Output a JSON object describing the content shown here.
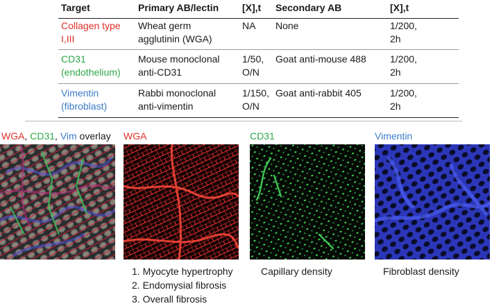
{
  "table": {
    "headers": [
      "Target",
      "Primary AB/lectin",
      "[X],t",
      "Secondary AB",
      "[X],t"
    ],
    "rows": [
      {
        "target_line1": "Collagen type",
        "target_line2": "I,III",
        "target_color": "#e0302a",
        "primary_line1": "Wheat germ",
        "primary_line2": "agglutinin (WGA)",
        "conc_line1": "NA",
        "conc_line2": "",
        "secondary": "None",
        "conc2_line1": "1/200,",
        "conc2_line2": "2h"
      },
      {
        "target_line1": "CD31",
        "target_line2": "(endothelium)",
        "target_color": "#2ea84a",
        "primary_line1": "Mouse monoclonal",
        "primary_line2": "anti-CD31",
        "conc_line1": "1/50,",
        "conc_line2": "O/N",
        "secondary": "Goat anti-mouse 488",
        "conc2_line1": "1/200,",
        "conc2_line2": "2h"
      },
      {
        "target_line1": "Vimentin",
        "target_line2": "(fibroblast)",
        "target_color": "#3a7bc8",
        "primary_line1": "Rabbi monoclonal",
        "primary_line2": "anti-vimentin",
        "conc_line1": "1/150,",
        "conc_line2": "O/N",
        "secondary": "Goat anti-rabbit 405",
        "conc2_line1": "1/200,",
        "conc2_line2": "2h"
      }
    ]
  },
  "panels": {
    "overlay_title": {
      "wga": "WGA",
      "sep1": ", ",
      "cd31": "CD31",
      "sep2": ", ",
      "vim": "Vim",
      "rest": " overlay"
    },
    "wga_title": "WGA",
    "cd31_title": "CD31",
    "vimentin_title": "Vimentin"
  },
  "captions": {
    "wga": [
      "1. Myocyte hypertrophy",
      "2. Endomysial fibrosis",
      "3. Overall fibrosis"
    ],
    "cd31": "Capillary density",
    "vimentin": "Fibroblast density"
  },
  "colors": {
    "wga_red": "#e0302a",
    "cd31_green": "#2ea84a",
    "vim_blue": "#3a7bc8"
  }
}
